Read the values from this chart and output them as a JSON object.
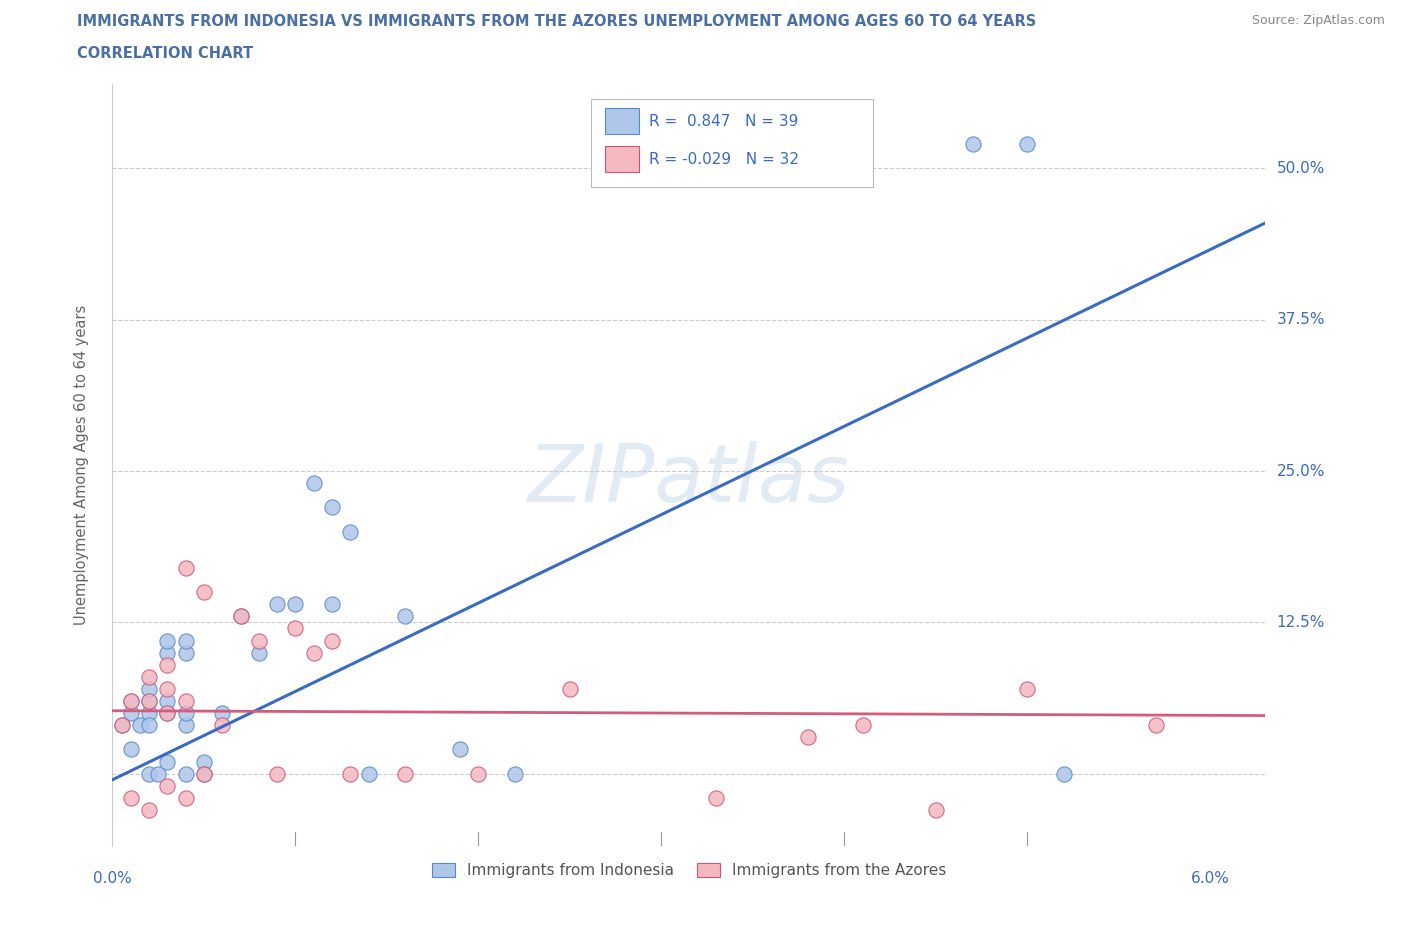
{
  "title_line1": "IMMIGRANTS FROM INDONESIA VS IMMIGRANTS FROM THE AZORES UNEMPLOYMENT AMONG AGES 60 TO 64 YEARS",
  "title_line2": "CORRELATION CHART",
  "title_color": "#4a6fa5",
  "source_text": "Source: ZipAtlas.com",
  "ylabel": "Unemployment Among Ages 60 to 64 years",
  "xlim": [
    0.0,
    0.063
  ],
  "ylim": [
    -0.06,
    0.57
  ],
  "yticks": [
    0.0,
    0.125,
    0.25,
    0.375,
    0.5
  ],
  "xticks": [
    0.0,
    0.01,
    0.02,
    0.03,
    0.04,
    0.05,
    0.06
  ],
  "watermark": "ZIPatlas",
  "blue_R": 0.847,
  "blue_N": 39,
  "pink_R": -0.029,
  "pink_N": 32,
  "blue_color": "#aec6e8",
  "pink_color": "#f4b8c1",
  "blue_edge_color": "#5588cc",
  "pink_edge_color": "#cc5577",
  "blue_line_color": "#3a6bc4",
  "pink_line_color": "#d45b7a",
  "right_label_color": "#3a6bc4",
  "legend_label_blue": "Immigrants from Indonesia",
  "legend_label_pink": "Immigrants from the Azores",
  "blue_scatter_x": [
    0.0005,
    0.001,
    0.001,
    0.001,
    0.0015,
    0.002,
    0.002,
    0.002,
    0.002,
    0.002,
    0.0025,
    0.003,
    0.003,
    0.003,
    0.003,
    0.003,
    0.004,
    0.004,
    0.004,
    0.004,
    0.004,
    0.005,
    0.005,
    0.006,
    0.007,
    0.008,
    0.009,
    0.01,
    0.011,
    0.012,
    0.012,
    0.013,
    0.014,
    0.016,
    0.019,
    0.022,
    0.047,
    0.05,
    0.052
  ],
  "blue_scatter_y": [
    0.04,
    0.02,
    0.05,
    0.06,
    0.04,
    0.0,
    0.05,
    0.06,
    0.07,
    0.04,
    0.0,
    0.01,
    0.05,
    0.06,
    0.1,
    0.11,
    0.0,
    0.04,
    0.1,
    0.11,
    0.05,
    0.01,
    0.0,
    0.05,
    0.13,
    0.1,
    0.14,
    0.14,
    0.24,
    0.14,
    0.22,
    0.2,
    0.0,
    0.13,
    0.02,
    0.0,
    0.52,
    0.52,
    0.0
  ],
  "pink_scatter_x": [
    0.0005,
    0.001,
    0.001,
    0.002,
    0.002,
    0.002,
    0.003,
    0.003,
    0.003,
    0.003,
    0.004,
    0.004,
    0.004,
    0.005,
    0.005,
    0.006,
    0.007,
    0.008,
    0.009,
    0.01,
    0.011,
    0.012,
    0.013,
    0.016,
    0.02,
    0.025,
    0.033,
    0.038,
    0.041,
    0.045,
    0.05,
    0.057
  ],
  "pink_scatter_y": [
    0.04,
    -0.02,
    0.06,
    -0.03,
    0.06,
    0.08,
    -0.01,
    0.05,
    0.07,
    0.09,
    -0.02,
    0.06,
    0.17,
    0.0,
    0.15,
    0.04,
    0.13,
    0.11,
    0.0,
    0.12,
    0.1,
    0.11,
    0.0,
    0.0,
    0.0,
    0.07,
    -0.02,
    0.03,
    0.04,
    -0.03,
    0.07,
    0.04
  ],
  "blue_trend_x": [
    0.0,
    0.063
  ],
  "blue_trend_y": [
    -0.005,
    0.455
  ],
  "pink_trend_x": [
    0.0,
    0.063
  ],
  "pink_trend_y": [
    0.052,
    0.048
  ],
  "background_color": "#ffffff",
  "grid_color": "#cccccc"
}
